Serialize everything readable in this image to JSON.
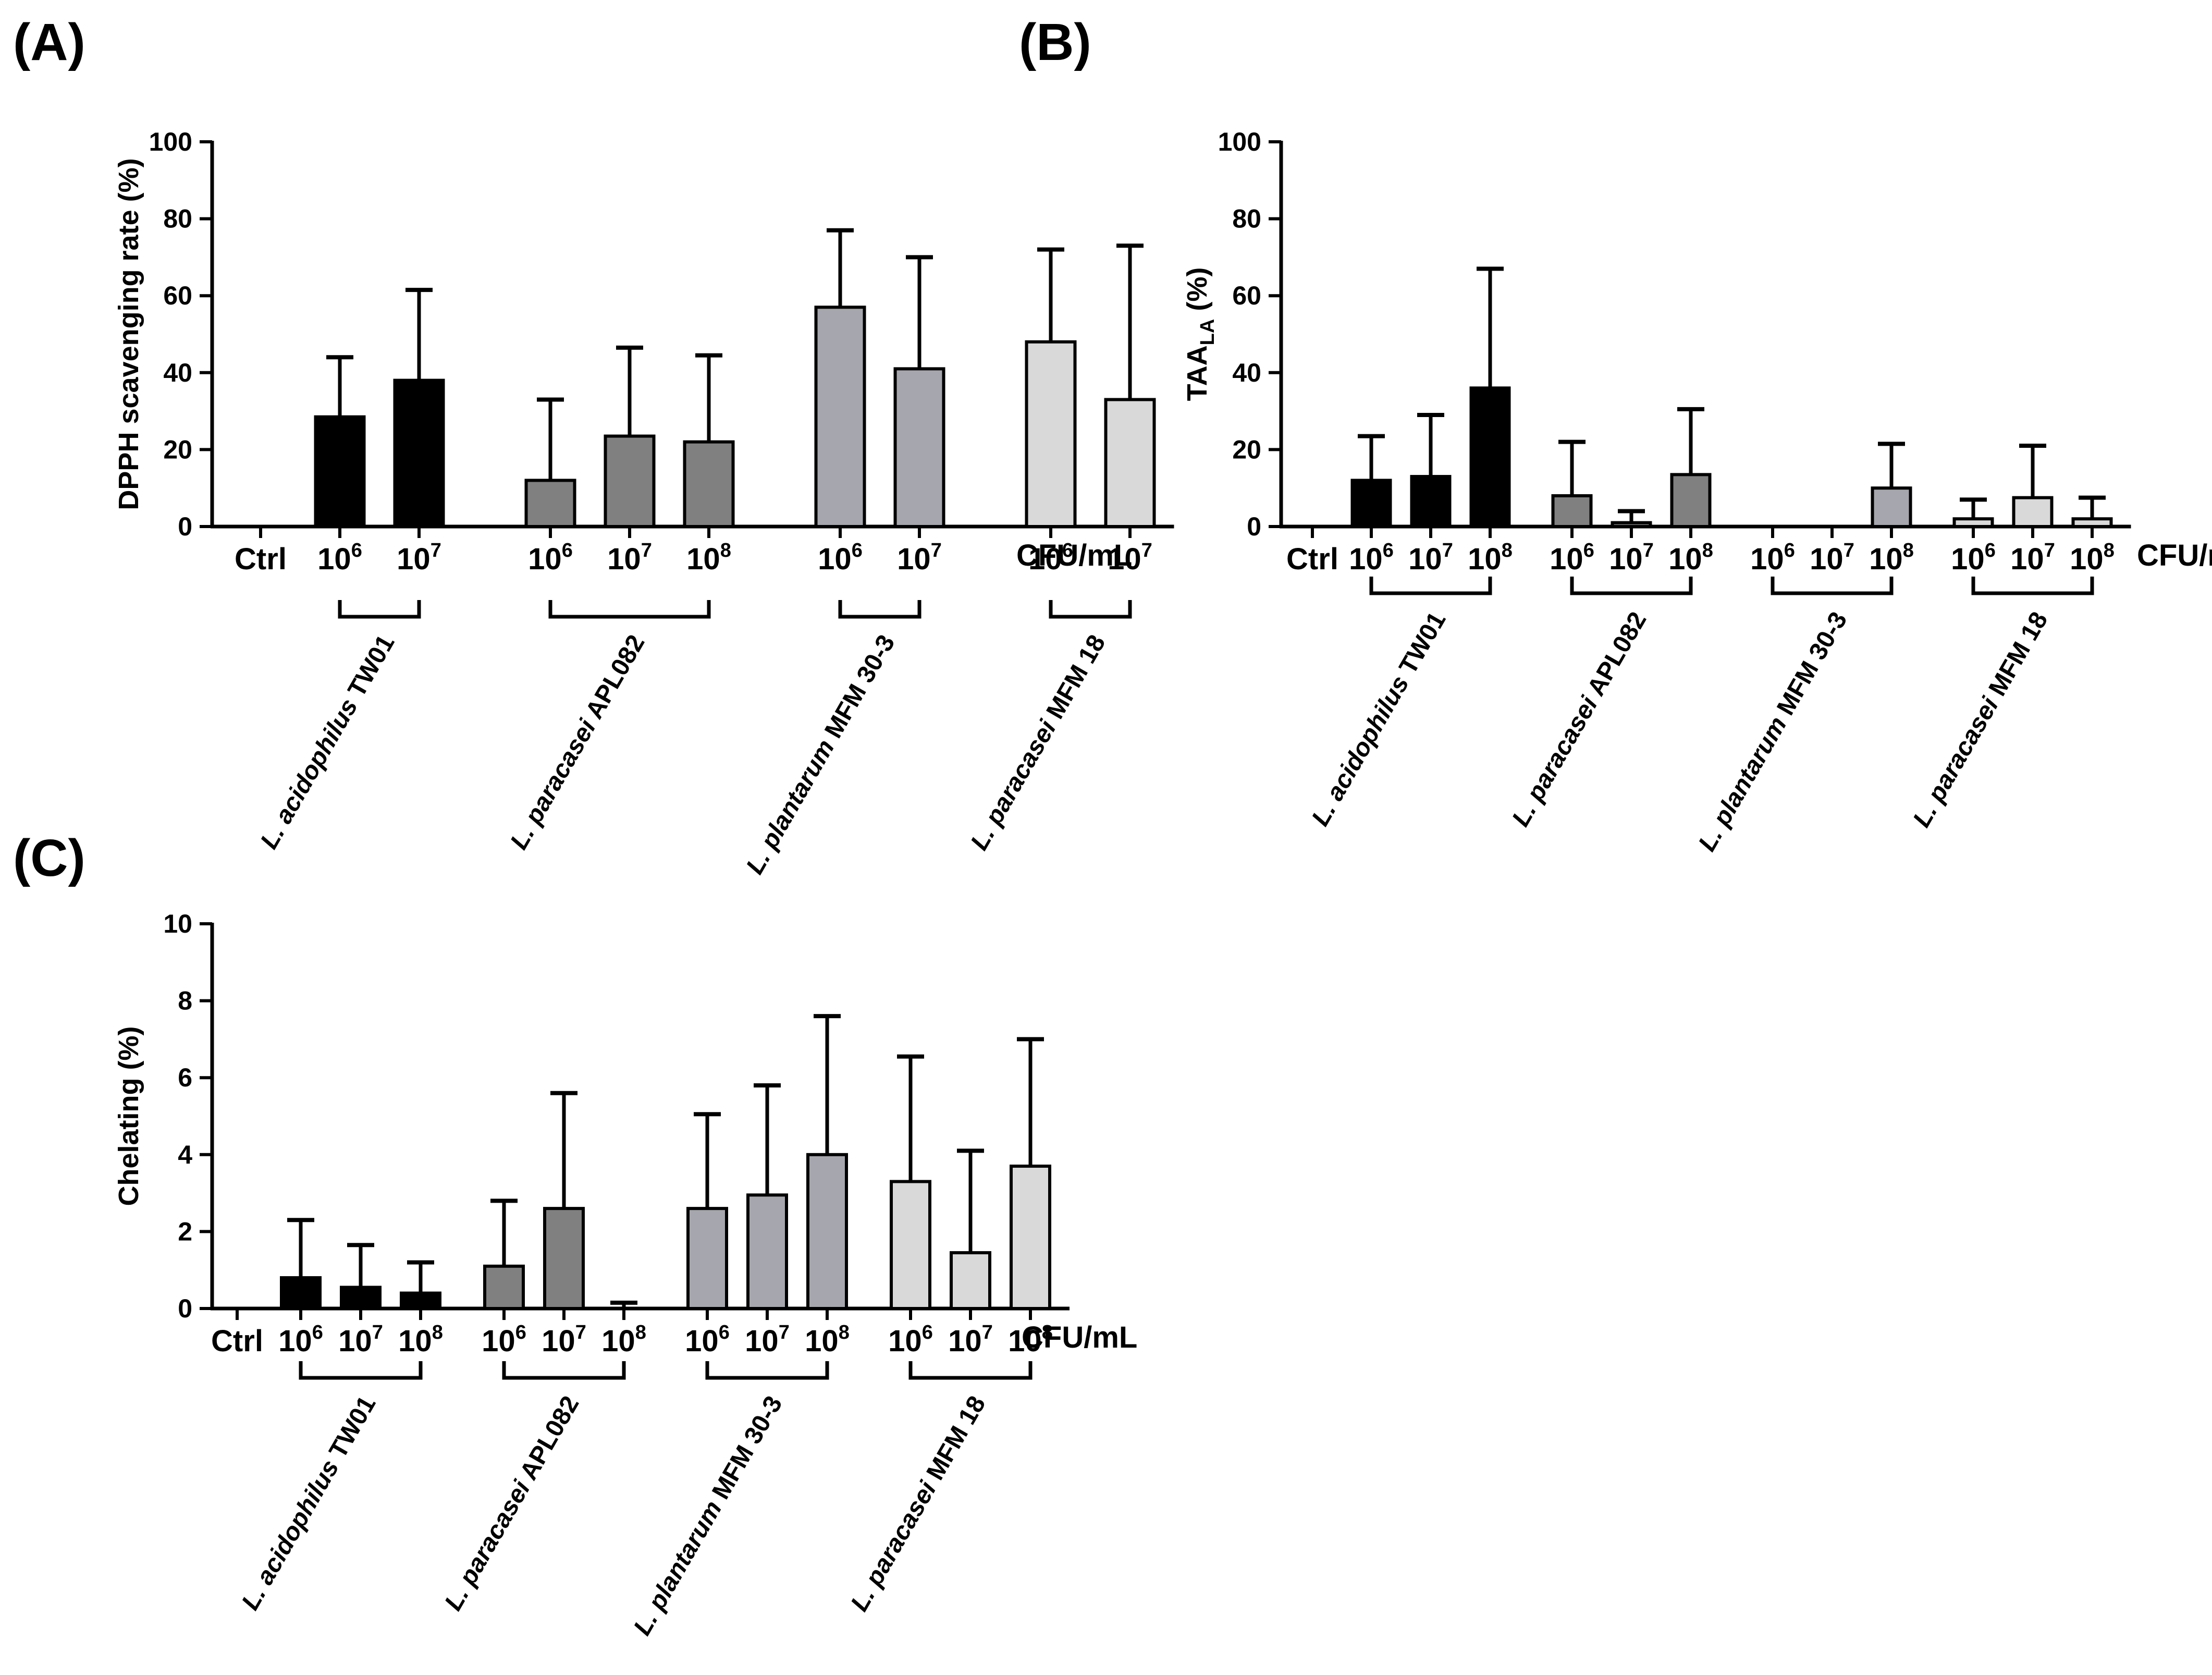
{
  "figure": {
    "panel_letters": [
      "(A)",
      "(B)",
      "(C)"
    ]
  },
  "chart_data": [
    {
      "id": "A",
      "type": "bar",
      "panel_letter": "(A)",
      "ylabel": "DPPH scavenging rate (%)",
      "ylim": [
        0,
        100
      ],
      "yticks": [
        0,
        20,
        40,
        60,
        80,
        100
      ],
      "unit_label": "CFU/mL",
      "ctrl_label": "Ctrl",
      "ctrl_value": 0,
      "groups": [
        {
          "strain": "L. acidophilus",
          "strain_suffix": " TW01",
          "fill": "#000000",
          "bars": [
            {
              "base": "10",
              "exp": "6",
              "value": 28.5,
              "err": 15.5
            },
            {
              "base": "10",
              "exp": "7",
              "value": 38,
              "err": 23.5
            }
          ]
        },
        {
          "strain": "L. paracasei",
          "strain_suffix": " APL082",
          "fill": "#808080",
          "bars": [
            {
              "base": "10",
              "exp": "6",
              "value": 12,
              "err": 21
            },
            {
              "base": "10",
              "exp": "7",
              "value": 23.5,
              "err": 23
            },
            {
              "base": "10",
              "exp": "8",
              "value": 22,
              "err": 22.5
            }
          ]
        },
        {
          "strain": "L. plantarum",
          "strain_suffix": " MFM 30-3",
          "fill": "#a6a6ae",
          "bars": [
            {
              "base": "10",
              "exp": "6",
              "value": 57,
              "err": 20
            },
            {
              "base": "10",
              "exp": "7",
              "value": 41,
              "err": 29
            }
          ]
        },
        {
          "strain": "L. paracasei",
          "strain_suffix": " MFM 18",
          "fill": "#d9d9d9",
          "bars": [
            {
              "base": "10",
              "exp": "6",
              "value": 48,
              "err": 24
            },
            {
              "base": "10",
              "exp": "7",
              "value": 33,
              "err": 40
            }
          ]
        }
      ]
    },
    {
      "id": "B",
      "type": "bar",
      "panel_letter": "(B)",
      "ylabel_main": "TAA",
      "ylabel_sub": "LA",
      "ylabel_tail": " (%)",
      "ylim": [
        0,
        100
      ],
      "yticks": [
        0,
        20,
        40,
        60,
        80,
        100
      ],
      "unit_label": "CFU/mL",
      "ctrl_label": "Ctrl",
      "ctrl_value": 0,
      "groups": [
        {
          "strain": "L. acidophilus",
          "strain_suffix": " TW01",
          "fill": "#000000",
          "bars": [
            {
              "base": "10",
              "exp": "6",
              "value": 12,
              "err": 11.5
            },
            {
              "base": "10",
              "exp": "7",
              "value": 13,
              "err": 16
            },
            {
              "base": "10",
              "exp": "8",
              "value": 36,
              "err": 31
            }
          ]
        },
        {
          "strain": "L. paracasei",
          "strain_suffix": " APL082",
          "fill": "#808080",
          "bars": [
            {
              "base": "10",
              "exp": "6",
              "value": 8,
              "err": 14
            },
            {
              "base": "10",
              "exp": "7",
              "value": 1,
              "err": 3
            },
            {
              "base": "10",
              "exp": "8",
              "value": 13.5,
              "err": 17
            }
          ]
        },
        {
          "strain": "L. plantarum",
          "strain_suffix": " MFM 30-3",
          "fill": "#a6a6ae",
          "bars": [
            {
              "base": "10",
              "exp": "6",
              "value": 0,
              "err": 0
            },
            {
              "base": "10",
              "exp": "7",
              "value": 0,
              "err": 0
            },
            {
              "base": "10",
              "exp": "8",
              "value": 10,
              "err": 11.5
            }
          ]
        },
        {
          "strain": "L. paracasei",
          "strain_suffix": " MFM 18",
          "fill": "#d9d9d9",
          "bars": [
            {
              "base": "10",
              "exp": "6",
              "value": 2,
              "err": 5
            },
            {
              "base": "10",
              "exp": "7",
              "value": 7.5,
              "err": 13.5
            },
            {
              "base": "10",
              "exp": "8",
              "value": 2,
              "err": 5.5
            }
          ]
        }
      ]
    },
    {
      "id": "C",
      "type": "bar",
      "panel_letter": "(C)",
      "ylabel": "Chelating (%)",
      "ylim": [
        0,
        10
      ],
      "yticks": [
        0,
        2,
        4,
        6,
        8,
        10
      ],
      "unit_label": "CFU/mL",
      "ctrl_label": "Ctrl",
      "ctrl_value": 0,
      "groups": [
        {
          "strain": "L. acidophilus",
          "strain_suffix": " TW01",
          "fill": "#000000",
          "bars": [
            {
              "base": "10",
              "exp": "6",
              "value": 0.8,
              "err": 1.5
            },
            {
              "base": "10",
              "exp": "7",
              "value": 0.55,
              "err": 1.1
            },
            {
              "base": "10",
              "exp": "8",
              "value": 0.4,
              "err": 0.8
            }
          ]
        },
        {
          "strain": "L. paracasei",
          "strain_suffix": " APL082",
          "fill": "#808080",
          "bars": [
            {
              "base": "10",
              "exp": "6",
              "value": 1.1,
              "err": 1.7
            },
            {
              "base": "10",
              "exp": "7",
              "value": 2.6,
              "err": 3.0
            },
            {
              "base": "10",
              "exp": "8",
              "value": 0,
              "err": 0.15
            }
          ]
        },
        {
          "strain": "L. plantarum",
          "strain_suffix": " MFM 30-3",
          "fill": "#a6a6ae",
          "bars": [
            {
              "base": "10",
              "exp": "6",
              "value": 2.6,
              "err": 2.45
            },
            {
              "base": "10",
              "exp": "7",
              "value": 2.95,
              "err": 2.85
            },
            {
              "base": "10",
              "exp": "8",
              "value": 4.0,
              "err": 3.6
            }
          ]
        },
        {
          "strain": "L. paracasei",
          "strain_suffix": " MFM 18",
          "fill": "#d9d9d9",
          "bars": [
            {
              "base": "10",
              "exp": "6",
              "value": 3.3,
              "err": 3.25
            },
            {
              "base": "10",
              "exp": "7",
              "value": 1.45,
              "err": 2.65
            },
            {
              "base": "10",
              "exp": "8",
              "value": 3.7,
              "err": 3.3
            }
          ]
        }
      ]
    }
  ]
}
